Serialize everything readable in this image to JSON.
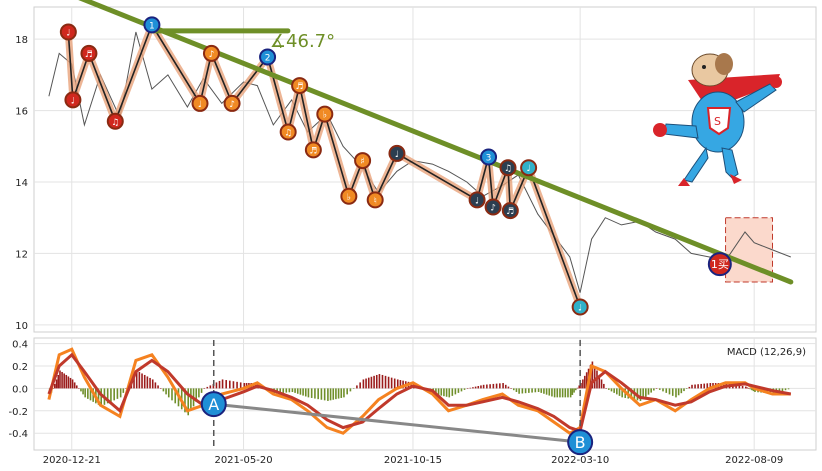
{
  "chart_data": [
    {
      "type": "line",
      "panel": "price",
      "ylim": [
        9.8,
        18.9
      ],
      "yticks": [
        "10",
        "12",
        "14",
        "16",
        "18"
      ],
      "grid": true,
      "price_x": [
        "2020-12-01",
        "2020-12-10",
        "2020-12-21",
        "2021-01-01",
        "2021-01-15",
        "2021-02-01",
        "2021-02-15",
        "2021-03-01",
        "2021-03-15",
        "2021-04-01",
        "2021-04-15",
        "2021-05-01",
        "2021-05-20",
        "2021-06-01",
        "2021-06-15",
        "2021-07-01",
        "2021-07-15",
        "2021-08-01",
        "2021-08-15",
        "2021-09-01",
        "2021-09-15",
        "2021-10-01",
        "2021-10-15",
        "2021-11-01",
        "2021-11-15",
        "2021-12-01",
        "2021-12-15",
        "2022-01-01",
        "2022-01-15",
        "2022-02-01",
        "2022-02-15",
        "2022-03-01",
        "2022-03-10",
        "2022-03-20",
        "2022-04-01",
        "2022-04-15",
        "2022-05-01",
        "2022-05-15",
        "2022-06-01",
        "2022-06-15",
        "2022-07-01",
        "2022-07-15",
        "2022-08-01",
        "2022-08-09",
        "2022-08-25",
        "2022-09-10"
      ],
      "price": [
        16.4,
        17.6,
        17.3,
        15.6,
        17.0,
        15.8,
        18.2,
        16.6,
        17.0,
        16.1,
        16.9,
        16.2,
        16.8,
        16.7,
        15.6,
        16.3,
        15.4,
        15.9,
        15.0,
        14.4,
        13.7,
        14.3,
        14.6,
        14.5,
        14.3,
        14.0,
        13.6,
        13.9,
        14.2,
        13.1,
        12.5,
        11.9,
        10.9,
        12.4,
        13.0,
        12.8,
        12.9,
        12.6,
        12.4,
        12.0,
        11.9,
        11.8,
        12.6,
        12.3,
        12.1,
        11.9
      ],
      "trendline": {
        "x": [
          "2020-12-01",
          "2022-09-10"
        ],
        "y": [
          19.5,
          11.2
        ]
      },
      "angle_label": "∡46.7°",
      "signals": [
        {
          "x": "2020-12-18",
          "y": 18.2,
          "style": "red",
          "label": "♩"
        },
        {
          "x": "2020-12-22",
          "y": 16.3,
          "style": "red",
          "label": "♩"
        },
        {
          "x": "2021-01-05",
          "y": 17.6,
          "style": "red",
          "label": "♬"
        },
        {
          "x": "2021-01-28",
          "y": 15.7,
          "style": "red",
          "label": "♫"
        },
        {
          "x": "2021-03-01",
          "y": 18.4,
          "style": "blue",
          "label": "1"
        },
        {
          "x": "2021-04-12",
          "y": 16.2,
          "style": "orange",
          "label": "♩"
        },
        {
          "x": "2021-04-22",
          "y": 17.6,
          "style": "orange",
          "label": "♪"
        },
        {
          "x": "2021-05-10",
          "y": 16.2,
          "style": "orange",
          "label": "♪"
        },
        {
          "x": "2021-06-10",
          "y": 17.5,
          "style": "blue",
          "label": "2"
        },
        {
          "x": "2021-06-28",
          "y": 15.4,
          "style": "orange",
          "label": "♫"
        },
        {
          "x": "2021-07-08",
          "y": 16.7,
          "style": "orange",
          "label": "♬"
        },
        {
          "x": "2021-07-20",
          "y": 14.9,
          "style": "orange",
          "label": "♬"
        },
        {
          "x": "2021-07-30",
          "y": 15.9,
          "style": "orange",
          "label": "♭"
        },
        {
          "x": "2021-08-20",
          "y": 13.6,
          "style": "orange",
          "label": "♭"
        },
        {
          "x": "2021-09-01",
          "y": 14.6,
          "style": "orange",
          "label": "♯"
        },
        {
          "x": "2021-09-12",
          "y": 13.5,
          "style": "orange",
          "label": "♮"
        },
        {
          "x": "2021-10-01",
          "y": 14.8,
          "style": "navy",
          "label": "♩"
        },
        {
          "x": "2021-12-10",
          "y": 13.5,
          "style": "navy",
          "label": "♩"
        },
        {
          "x": "2021-12-20",
          "y": 14.7,
          "style": "blue",
          "label": "3"
        },
        {
          "x": "2021-12-24",
          "y": 13.3,
          "style": "navy",
          "label": "♪"
        },
        {
          "x": "2022-01-06",
          "y": 14.4,
          "style": "navy",
          "label": "♫"
        },
        {
          "x": "2022-01-08",
          "y": 13.2,
          "style": "navy",
          "label": "♬"
        },
        {
          "x": "2022-01-24",
          "y": 14.4,
          "style": "teal",
          "label": "♩"
        },
        {
          "x": "2022-03-10",
          "y": 10.5,
          "style": "teal",
          "label": "♩"
        },
        {
          "x": "2022-07-10",
          "y": 11.7,
          "style": "buy",
          "label": "1买"
        }
      ],
      "buy_zone": {
        "x0": "2022-07-15",
        "x1": "2022-08-25",
        "y0": 11.2,
        "y1": 13.0
      }
    },
    {
      "type": "line",
      "panel": "macd",
      "title": "MACD (12,26,9)",
      "ylim": [
        -0.55,
        0.45
      ],
      "yticks": [
        "0.4",
        "0.2",
        "0.0",
        "-0.2",
        "-0.4"
      ],
      "xticks": [
        "2020-12-21",
        "2021-05-20",
        "2021-10-15",
        "2022-03-10",
        "2022-08-09"
      ],
      "grid": true,
      "x": [
        "2020-12-01",
        "2020-12-10",
        "2020-12-21",
        "2021-01-01",
        "2021-01-15",
        "2021-02-01",
        "2021-02-15",
        "2021-03-01",
        "2021-03-15",
        "2021-04-01",
        "2021-04-15",
        "2021-05-01",
        "2021-05-20",
        "2021-06-01",
        "2021-06-15",
        "2021-07-01",
        "2021-07-15",
        "2021-08-01",
        "2021-08-15",
        "2021-09-01",
        "2021-09-15",
        "2021-10-01",
        "2021-10-15",
        "2021-11-01",
        "2021-11-15",
        "2021-12-01",
        "2021-12-15",
        "2022-01-01",
        "2022-01-15",
        "2022-02-01",
        "2022-02-15",
        "2022-03-01",
        "2022-03-10",
        "2022-03-20",
        "2022-04-01",
        "2022-04-15",
        "2022-05-01",
        "2022-05-15",
        "2022-06-01",
        "2022-06-15",
        "2022-07-01",
        "2022-07-15",
        "2022-08-01",
        "2022-08-09",
        "2022-08-25",
        "2022-09-10"
      ],
      "dif": [
        -0.1,
        0.3,
        0.35,
        0.1,
        -0.15,
        -0.25,
        0.25,
        0.3,
        0.1,
        -0.2,
        -0.15,
        -0.05,
        0.0,
        0.05,
        -0.05,
        -0.1,
        -0.2,
        -0.35,
        -0.4,
        -0.25,
        -0.1,
        0.0,
        0.05,
        -0.05,
        -0.2,
        -0.15,
        -0.1,
        -0.05,
        -0.15,
        -0.2,
        -0.3,
        -0.4,
        -0.35,
        0.2,
        0.15,
        0.0,
        -0.15,
        -0.1,
        -0.2,
        -0.1,
        0.0,
        0.05,
        0.05,
        0.0,
        -0.05,
        -0.05
      ],
      "dea": [
        -0.05,
        0.2,
        0.3,
        0.15,
        -0.05,
        -0.2,
        0.15,
        0.25,
        0.15,
        -0.05,
        -0.15,
        -0.1,
        -0.03,
        0.02,
        -0.02,
        -0.08,
        -0.15,
        -0.28,
        -0.35,
        -0.3,
        -0.18,
        -0.05,
        0.02,
        -0.02,
        -0.15,
        -0.15,
        -0.12,
        -0.08,
        -0.12,
        -0.18,
        -0.25,
        -0.35,
        -0.38,
        0.05,
        0.15,
        0.05,
        -0.08,
        -0.1,
        -0.15,
        -0.12,
        -0.03,
        0.02,
        0.04,
        0.02,
        -0.02,
        -0.05
      ],
      "divergence": [
        {
          "x": "2021-04-24",
          "y": -0.14,
          "label": "A"
        },
        {
          "x": "2022-03-10",
          "y": -0.48,
          "label": "B"
        }
      ]
    }
  ],
  "colors": {
    "trend": "#6e8f27",
    "dif": "#f58220",
    "dea": "#c0392b",
    "hist_pos": "#9b1c1c",
    "hist_neg": "#6f8f2a",
    "signal_blue": "#1f8fd6",
    "signal_red": "#d0281e",
    "signal_orange": "#f08a24",
    "signal_navy": "#2c3e50",
    "signal_teal": "#31b0c8"
  },
  "mascot_icon": "superhero-dog-icon"
}
